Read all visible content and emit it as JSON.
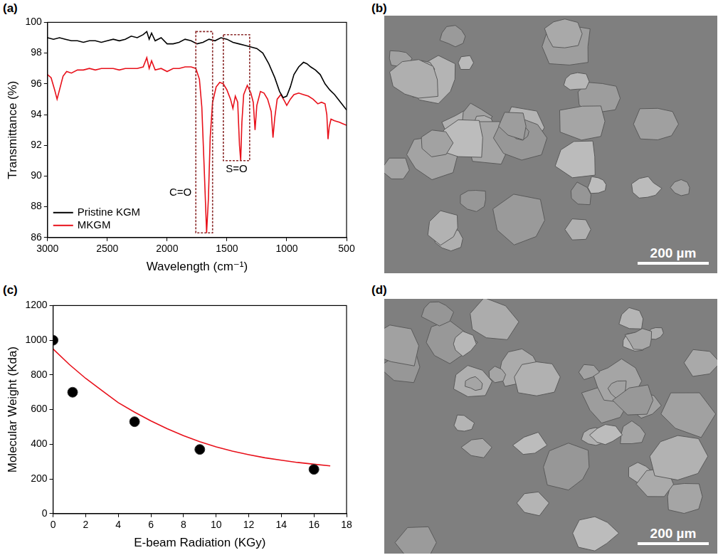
{
  "chart_data": [
    {
      "label": "(a)",
      "type": "line",
      "x_label": "Wavelength (cm⁻¹)",
      "y_label": "Transmittance (%)",
      "xlim": [
        3000,
        500
      ],
      "xticks": [
        3000,
        2500,
        2000,
        1500,
        1000,
        500
      ],
      "ylim": [
        86,
        100
      ],
      "yticks": [
        86,
        88,
        90,
        92,
        94,
        96,
        98,
        100
      ],
      "grid": false,
      "legend": "lower left",
      "series": [
        {
          "name": "Pristine KGM",
          "color": "#000000",
          "line_style": "solid",
          "x": [
            3000,
            2950,
            2900,
            2850,
            2800,
            2750,
            2700,
            2650,
            2600,
            2550,
            2500,
            2450,
            2400,
            2350,
            2300,
            2250,
            2200,
            2170,
            2150,
            2130,
            2100,
            2050,
            2000,
            1950,
            1900,
            1850,
            1800,
            1750,
            1700,
            1650,
            1600,
            1550,
            1500,
            1450,
            1400,
            1350,
            1300,
            1250,
            1200,
            1150,
            1100,
            1060,
            1030,
            1000,
            970,
            940,
            900,
            860,
            830,
            800,
            760,
            720,
            680,
            640,
            600,
            550,
            500
          ],
          "values": [
            99.0,
            98.9,
            99.0,
            98.9,
            98.8,
            98.8,
            98.7,
            98.8,
            98.8,
            98.7,
            98.8,
            98.9,
            98.8,
            98.9,
            99.1,
            99.0,
            99.2,
            99.4,
            98.9,
            99.3,
            98.8,
            99.0,
            98.6,
            98.6,
            98.7,
            98.9,
            98.8,
            98.6,
            98.7,
            98.9,
            98.8,
            99.0,
            98.9,
            98.7,
            98.6,
            98.5,
            98.4,
            98.3,
            98.0,
            97.3,
            96.4,
            95.5,
            95.1,
            95.2,
            95.8,
            96.6,
            97.1,
            97.4,
            97.3,
            97.1,
            96.9,
            96.6,
            96.0,
            95.6,
            95.3,
            94.8,
            94.3
          ]
        },
        {
          "name": "MKGM",
          "color": "#e8101a",
          "line_style": "solid",
          "x": [
            3000,
            2970,
            2940,
            2920,
            2900,
            2870,
            2840,
            2800,
            2750,
            2700,
            2650,
            2600,
            2550,
            2500,
            2450,
            2400,
            2350,
            2300,
            2250,
            2200,
            2170,
            2150,
            2130,
            2100,
            2050,
            2000,
            1950,
            1900,
            1850,
            1800,
            1760,
            1730,
            1710,
            1690,
            1670,
            1655,
            1640,
            1620,
            1590,
            1560,
            1530,
            1500,
            1470,
            1450,
            1430,
            1410,
            1395,
            1385,
            1375,
            1360,
            1330,
            1300,
            1280,
            1265,
            1250,
            1220,
            1190,
            1160,
            1130,
            1115,
            1100,
            1080,
            1050,
            1020,
            1000,
            970,
            940,
            900,
            860,
            820,
            780,
            740,
            710,
            680,
            665,
            655,
            645,
            630,
            600,
            560,
            530,
            500
          ],
          "values": [
            96.6,
            96.4,
            95.6,
            95.0,
            95.6,
            96.5,
            96.8,
            96.7,
            96.9,
            96.9,
            97.0,
            96.9,
            97.0,
            97.0,
            97.0,
            96.9,
            97.0,
            97.0,
            97.0,
            97.1,
            97.7,
            97.0,
            97.5,
            96.9,
            97.0,
            96.8,
            97.0,
            97.0,
            97.1,
            97.1,
            97.0,
            96.3,
            94.5,
            90.5,
            86.3,
            88.5,
            92.5,
            94.8,
            95.8,
            96.1,
            96.0,
            95.6,
            95.0,
            94.4,
            95.2,
            94.8,
            92.0,
            91.0,
            93.5,
            95.3,
            95.9,
            95.4,
            94.8,
            93.0,
            94.6,
            95.5,
            95.4,
            95.0,
            94.2,
            92.5,
            93.8,
            95.0,
            95.3,
            94.9,
            94.6,
            95.0,
            95.3,
            95.4,
            95.3,
            95.2,
            95.0,
            94.7,
            94.8,
            94.7,
            94.0,
            92.4,
            93.2,
            93.7,
            93.6,
            93.5,
            93.4,
            93.3
          ]
        }
      ],
      "annotations": [
        {
          "text": "C=O",
          "x": [
            1760,
            1620
          ],
          "y": [
            86.3,
            99.4
          ]
        },
        {
          "text": "S=O",
          "x": [
            1530,
            1310
          ],
          "y": [
            91.0,
            99.2
          ]
        }
      ]
    },
    {
      "label": "(c)",
      "type": "scatter",
      "x_label": "E-beam Radiation (KGy)",
      "y_label": "Molecular Weight (Kda)",
      "xlim": [
        0,
        18
      ],
      "xticks": [
        0,
        2,
        4,
        6,
        8,
        10,
        12,
        14,
        16,
        18
      ],
      "ylim": [
        0,
        1200
      ],
      "yticks": [
        0,
        200,
        400,
        600,
        800,
        1000,
        1200
      ],
      "grid": false,
      "series": [
        {
          "type": "line",
          "color": "#e8101a",
          "line_style": "solid",
          "x": [
            0,
            1,
            2,
            3,
            4,
            5,
            6,
            7,
            8,
            9,
            10,
            11,
            12,
            13,
            14,
            15,
            16,
            17
          ],
          "values": [
            950,
            860,
            780,
            710,
            640,
            585,
            535,
            490,
            450,
            415,
            385,
            360,
            340,
            322,
            308,
            295,
            285,
            275
          ]
        },
        {
          "type": "scatter",
          "color": "#000000",
          "marker": "circle",
          "x": [
            0,
            1.2,
            5,
            9,
            16
          ],
          "values": [
            1000,
            700,
            530,
            370,
            255
          ]
        }
      ]
    }
  ],
  "images": [
    {
      "label": "(b)",
      "scale_bar": "200 µm"
    },
    {
      "label": "(d)",
      "scale_bar": "200 µm"
    }
  ]
}
